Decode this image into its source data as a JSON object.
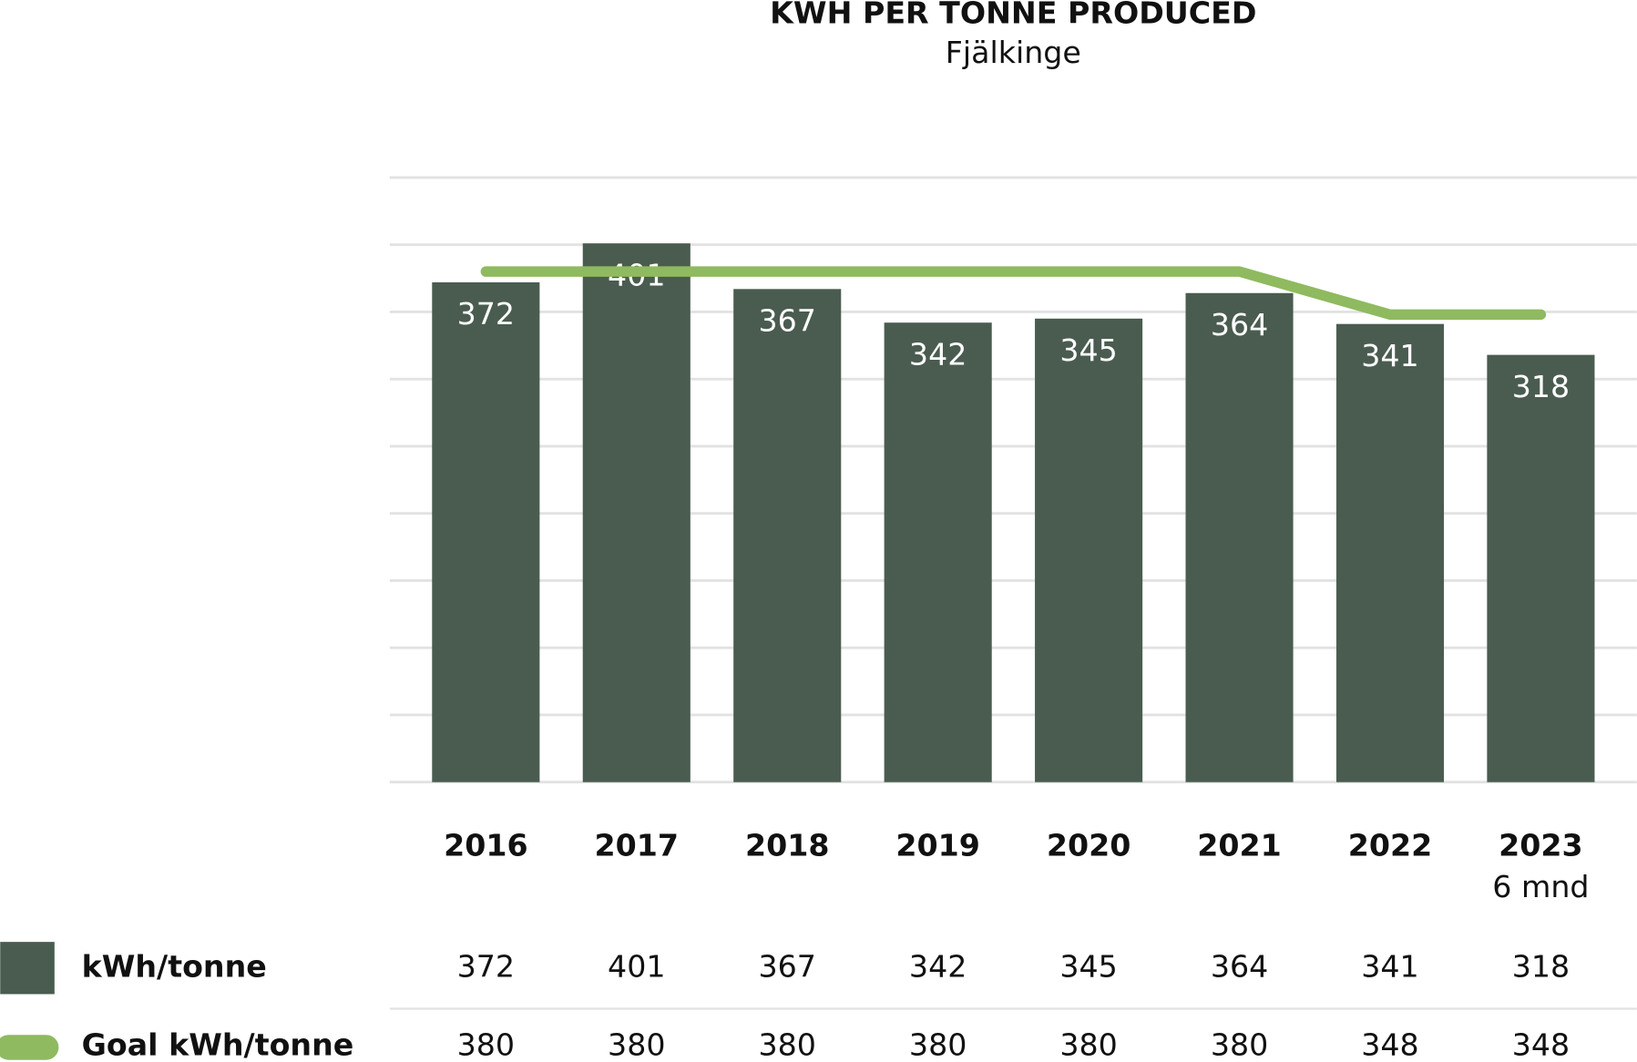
{
  "chart_data": {
    "type": "bar",
    "title": "KWH PER TONNE PRODUCED",
    "subtitle": "Fjälkinge",
    "categories": [
      "2016",
      "2017",
      "2018",
      "2019",
      "2020",
      "2021",
      "2022",
      "2023"
    ],
    "category_sublabels": [
      null,
      null,
      null,
      null,
      null,
      null,
      null,
      "6 mnd"
    ],
    "series": [
      {
        "name": "kWh/tonne",
        "type": "bar",
        "color": "#4a5c50",
        "values": [
          372,
          401,
          367,
          342,
          345,
          364,
          341,
          318
        ]
      },
      {
        "name": "Goal kWh/tonne",
        "type": "line",
        "color": "#8fba5f",
        "values": [
          380,
          380,
          380,
          380,
          380,
          380,
          348,
          348
        ]
      }
    ],
    "ylim": [
      0,
      450
    ],
    "yticks": [
      0,
      50,
      100,
      150,
      200,
      250,
      300,
      350,
      400,
      450
    ],
    "grid": true
  }
}
